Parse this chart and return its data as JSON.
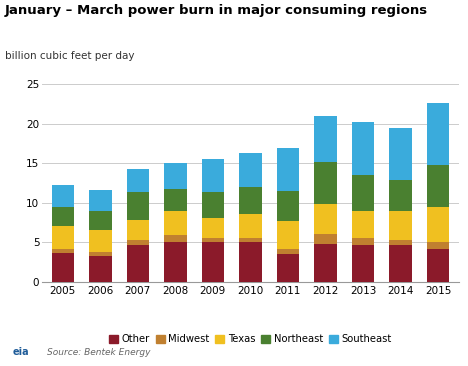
{
  "title": "January – March power burn in major consuming regions",
  "subtitle": "billion cubic feet per day",
  "source": "Source: Bentek Energy",
  "years": [
    2005,
    2006,
    2007,
    2008,
    2009,
    2010,
    2011,
    2012,
    2013,
    2014,
    2015
  ],
  "series": {
    "Other": [
      3.7,
      3.3,
      4.6,
      5.1,
      5.0,
      5.1,
      3.5,
      4.8,
      4.7,
      4.6,
      4.1
    ],
    "Midwest": [
      0.5,
      0.5,
      0.7,
      0.8,
      0.6,
      0.5,
      0.7,
      1.3,
      0.8,
      0.7,
      1.0
    ],
    "Texas": [
      2.8,
      2.8,
      2.5,
      3.0,
      2.5,
      3.0,
      3.5,
      3.8,
      3.5,
      3.6,
      4.4
    ],
    "Northeast": [
      2.5,
      2.3,
      3.5,
      2.9,
      3.2,
      3.4,
      3.8,
      5.2,
      4.5,
      4.0,
      5.3
    ],
    "Southeast": [
      2.7,
      2.7,
      3.0,
      3.2,
      4.2,
      4.3,
      5.4,
      5.9,
      6.7,
      6.5,
      7.8
    ]
  },
  "colors": {
    "Other": "#8B1A2A",
    "Midwest": "#C08030",
    "Texas": "#F0C020",
    "Northeast": "#4A8030",
    "Southeast": "#3AABDC"
  },
  "ylim": [
    0,
    25
  ],
  "yticks": [
    0,
    5,
    10,
    15,
    20,
    25
  ],
  "background_color": "#ffffff",
  "grid_color": "#cccccc",
  "title_fontsize": 9.5,
  "subtitle_fontsize": 7.5,
  "tick_fontsize": 7.5,
  "legend_fontsize": 7.2,
  "source_fontsize": 6.5
}
